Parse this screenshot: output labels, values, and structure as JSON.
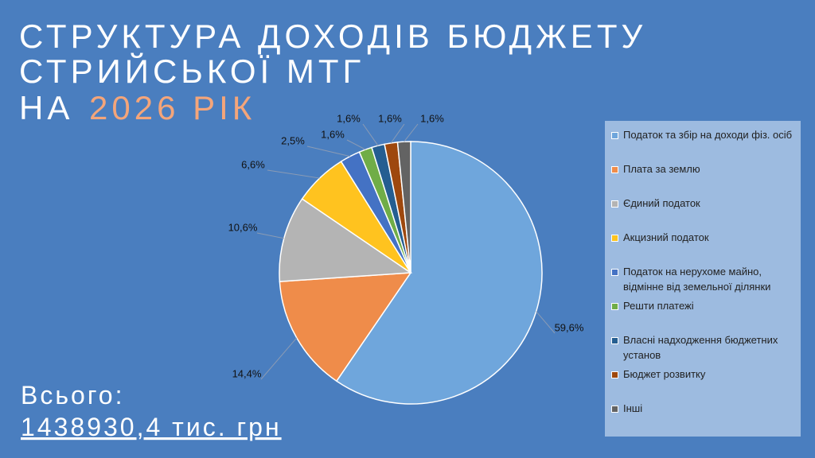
{
  "chart_data": {
    "type": "pie",
    "title": [
      "СТРУКТУРА ДОХОДІВ БЮДЖЕТУ",
      "СТРИЙСЬКОЇ МТГ"
    ],
    "subtitle": [
      "НА",
      "2026 РІК"
    ],
    "annotations": [
      "Всього:",
      "1438930,4 тис. грн"
    ],
    "categories": [
      "Податок та збір на доходи фіз. осіб",
      "Плата за землю",
      "Єдиний податок",
      "Акцизний податок",
      "Податок на нерухоме майно, відмінне від земельної ділянки",
      "Решти платежі",
      "Власні надходження бюджетних установ",
      "Бюджет розвитку",
      "Інші"
    ],
    "values": [
      59.6,
      14.4,
      10.6,
      6.6,
      2.5,
      1.6,
      1.6,
      1.6,
      1.6
    ],
    "value_labels": [
      "59,6%",
      "14,4%",
      "10,6%",
      "6,6%",
      "2,5%",
      "1,6%",
      "1,6%",
      "1,6%",
      "1,6%"
    ],
    "colors": [
      "#6fa6dc",
      "#ef8c4a",
      "#b4b4b4",
      "#ffc31f",
      "#4472c4",
      "#70ad47",
      "#255e91",
      "#9e480e",
      "#636363"
    ],
    "legend": "right"
  }
}
